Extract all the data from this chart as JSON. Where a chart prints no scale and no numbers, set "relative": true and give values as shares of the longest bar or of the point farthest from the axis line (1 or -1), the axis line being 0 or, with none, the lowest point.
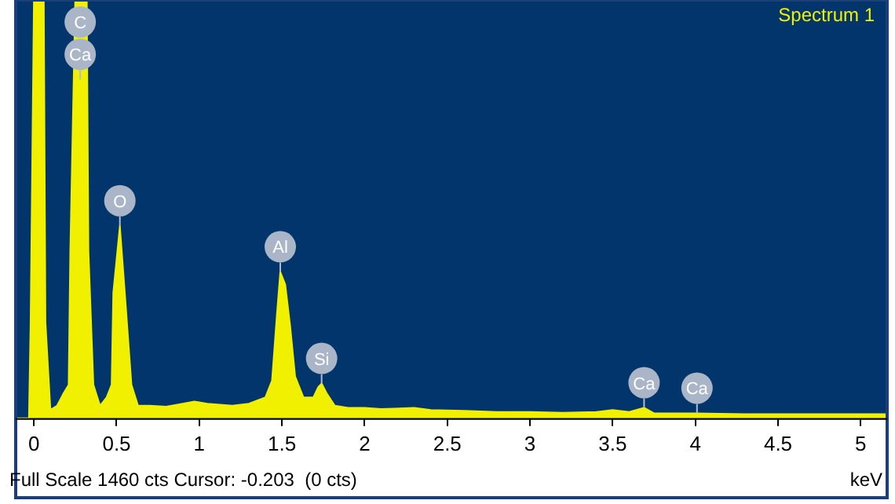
{
  "chart_data": {
    "type": "area",
    "relative": true,
    "xlabel": "keV",
    "xlim": [
      -0.11,
      5.16
    ],
    "xticks": [
      0,
      0.5,
      1,
      1.5,
      2,
      2.5,
      3,
      3.5,
      4,
      4.5,
      5
    ],
    "legend": "top right",
    "grid": false,
    "x": [
      -0.11,
      -0.03,
      -0.02,
      0.0,
      0.06,
      0.07,
      0.1,
      0.14,
      0.18,
      0.21,
      0.22,
      0.25,
      0.32,
      0.33,
      0.36,
      0.4,
      0.44,
      0.47,
      0.48,
      0.52,
      0.55,
      0.59,
      0.63,
      0.7,
      0.8,
      0.9,
      0.97,
      1.05,
      1.2,
      1.3,
      1.4,
      1.44,
      1.47,
      1.49,
      1.52,
      1.55,
      1.58,
      1.63,
      1.69,
      1.72,
      1.74,
      1.77,
      1.82,
      1.9,
      2.0,
      2.1,
      2.3,
      2.4,
      2.6,
      2.8,
      3.0,
      3.2,
      3.4,
      3.5,
      3.6,
      3.69,
      3.75,
      4.0,
      4.3,
      4.6,
      5.0,
      5.16
    ],
    "series": [
      {
        "name": "Spectrum 1",
        "color": "#f0f000",
        "values": [
          0,
          0,
          0.23,
          1,
          1,
          0.23,
          0.02,
          0.03,
          0.06,
          0.08,
          0.4,
          1,
          1,
          0.4,
          0.08,
          0.03,
          0.05,
          0.08,
          0.3,
          0.46,
          0.3,
          0.08,
          0.03,
          0.03,
          0.028,
          0.035,
          0.04,
          0.035,
          0.03,
          0.035,
          0.05,
          0.09,
          0.25,
          0.35,
          0.32,
          0.22,
          0.1,
          0.05,
          0.05,
          0.075,
          0.083,
          0.06,
          0.03,
          0.025,
          0.025,
          0.022,
          0.025,
          0.02,
          0.018,
          0.015,
          0.015,
          0.013,
          0.015,
          0.02,
          0.015,
          0.025,
          0.012,
          0.012,
          0.01,
          0.01,
          0.01,
          0.01
        ]
      }
    ],
    "annotations": [
      {
        "text": "C",
        "x": 0.28,
        "y": 1
      },
      {
        "text": "Ca",
        "x": 0.28,
        "y": 0.81
      },
      {
        "text": "O",
        "x": 0.52,
        "y": 0.46
      },
      {
        "text": "Al",
        "x": 1.49,
        "y": 0.35
      },
      {
        "text": "Si",
        "x": 1.74,
        "y": 0.083
      },
      {
        "text": "Ca",
        "x": 3.69,
        "y": 0.025
      },
      {
        "text": "Ca",
        "x": 4.01,
        "y": 0.012
      },
      "Full Scale 1460 cts Cursor: -0.203  (0 cts)"
    ]
  }
}
